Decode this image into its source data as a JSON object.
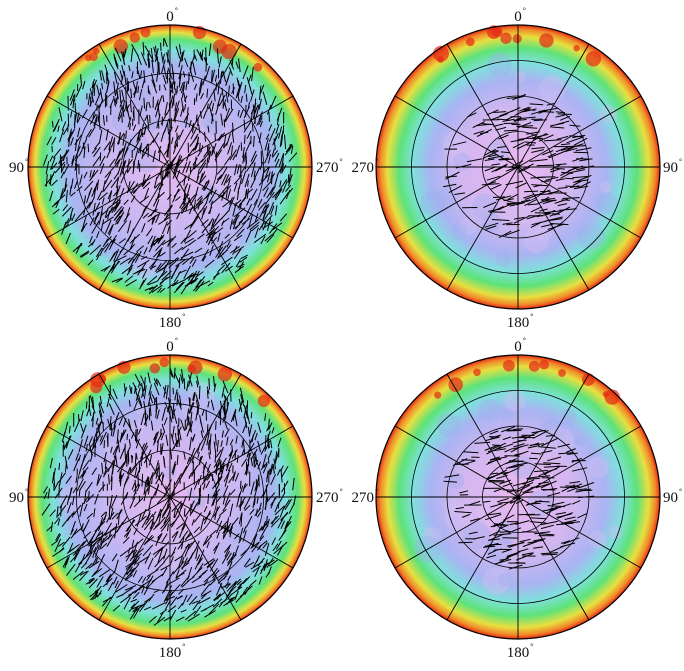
{
  "panels": [
    {
      "id": "top-left",
      "labels": {
        "top": "0",
        "bottom": "180",
        "left": "90",
        "right": "270"
      },
      "vectors": "dense-full"
    },
    {
      "id": "top-right",
      "labels": {
        "top": "0",
        "bottom": "180",
        "left": "270",
        "right": "90"
      },
      "vectors": "inner-sparse"
    },
    {
      "id": "bottom-left",
      "labels": {
        "top": "0",
        "bottom": "180",
        "left": "90",
        "right": "270"
      },
      "vectors": "dense-full"
    },
    {
      "id": "bottom-right",
      "labels": {
        "top": "0",
        "bottom": "180",
        "left": "270",
        "right": "90"
      },
      "vectors": "inner-sparse"
    }
  ],
  "degree_symbol": "°",
  "colors": {
    "center": "#eab8f0",
    "mid": "#a9b4f2",
    "cyan": "#7fe0dc",
    "green": "#5ee27a",
    "yellow": "#e8e040",
    "orange": "#f08a2a",
    "edge": "#e42a14",
    "vector": "#000000"
  }
}
